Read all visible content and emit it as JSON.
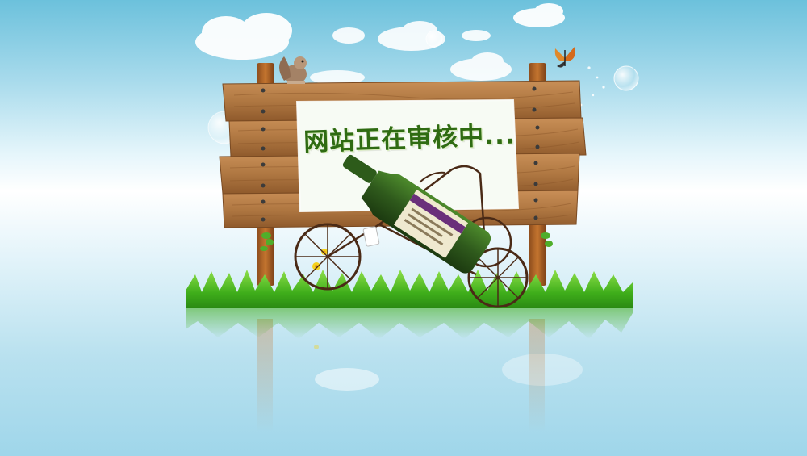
{
  "sign": {
    "text": "网站正在审核中..."
  },
  "colors": {
    "sky_top": "#6cc1dc",
    "wood": "#b07842",
    "grass": "#3fae1b",
    "bottle": "#2f5a1c",
    "sign_text": "#2f6b12"
  },
  "icons": {
    "cloud": "cloud-icon",
    "squirrel": "squirrel-icon",
    "butterfly": "butterfly-icon",
    "bubble": "bubble-icon",
    "flower": "flower-icon"
  }
}
